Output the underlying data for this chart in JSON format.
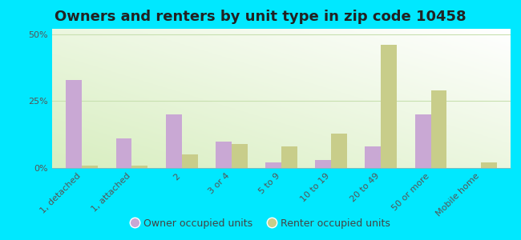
{
  "title": "Owners and renters by unit type in zip code 10458",
  "categories": [
    "1, detached",
    "1, attached",
    "2",
    "3 or 4",
    "5 to 9",
    "10 to 19",
    "20 to 49",
    "50 or more",
    "Mobile home"
  ],
  "owner_values": [
    33,
    11,
    20,
    10,
    2,
    3,
    8,
    20,
    0
  ],
  "renter_values": [
    1,
    1,
    5,
    9,
    8,
    13,
    46,
    29,
    2
  ],
  "owner_color": "#c9a8d4",
  "renter_color": "#c8cd8a",
  "bg_top_color": "#f0f8e8",
  "bg_bottom_color": "#d8eec0",
  "outer_bg": "#00e8ff",
  "ylim": [
    0,
    52
  ],
  "yticks": [
    0,
    25,
    50
  ],
  "ytick_labels": [
    "0%",
    "25%",
    "50%"
  ],
  "bar_width": 0.32,
  "legend_owner": "Owner occupied units",
  "legend_renter": "Renter occupied units",
  "title_fontsize": 13,
  "tick_fontsize": 8,
  "legend_fontsize": 9,
  "grid_color": "#c8e0b0"
}
